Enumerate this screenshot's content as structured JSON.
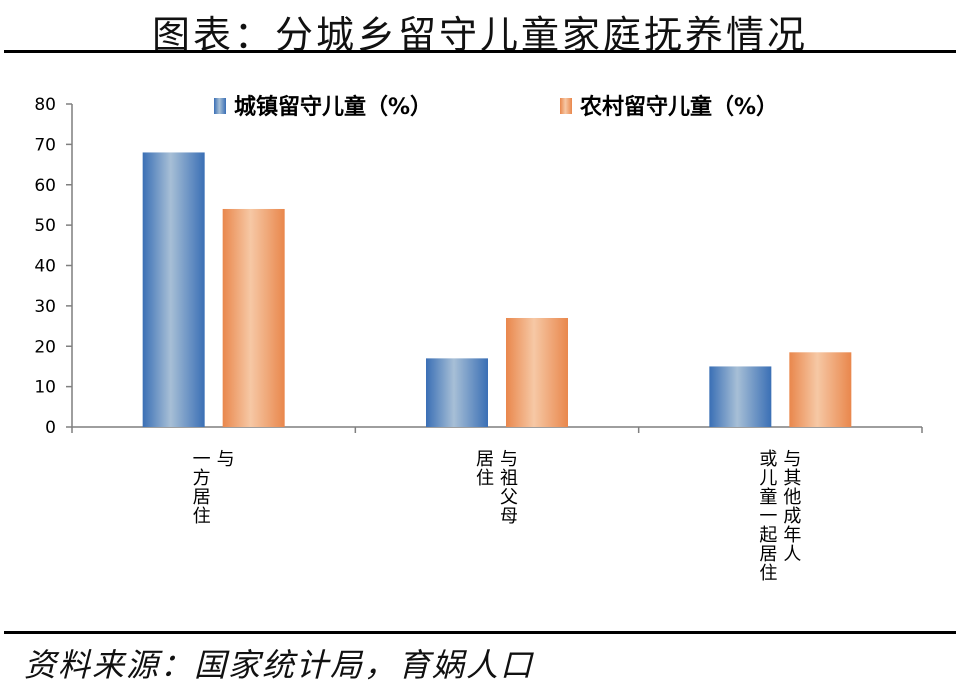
{
  "title": "图表：分城乡留守儿童家庭抚养情况",
  "source": "资料来源：国家统计局，育娲人口",
  "chart_data": {
    "type": "bar",
    "title": "图表：分城乡留守儿童家庭抚养情况",
    "categories": [
      [
        "与",
        "一方居住"
      ],
      [
        "与祖父母",
        "居住"
      ],
      [
        "与其他成年人",
        "或儿童一起居住"
      ]
    ],
    "series": [
      {
        "name": "城镇留守儿童（%）",
        "values": [
          68,
          17,
          15
        ],
        "color": "#4f81bd"
      },
      {
        "name": "农村留守儿童（%）",
        "values": [
          54,
          27,
          18.5
        ],
        "color": "#f0a06a"
      }
    ],
    "yticks": [
      0,
      10,
      20,
      30,
      40,
      50,
      60,
      70,
      80
    ],
    "ylim": [
      0,
      80
    ],
    "xlabel": "",
    "ylabel": "",
    "legend_position": "top",
    "grid": false
  }
}
